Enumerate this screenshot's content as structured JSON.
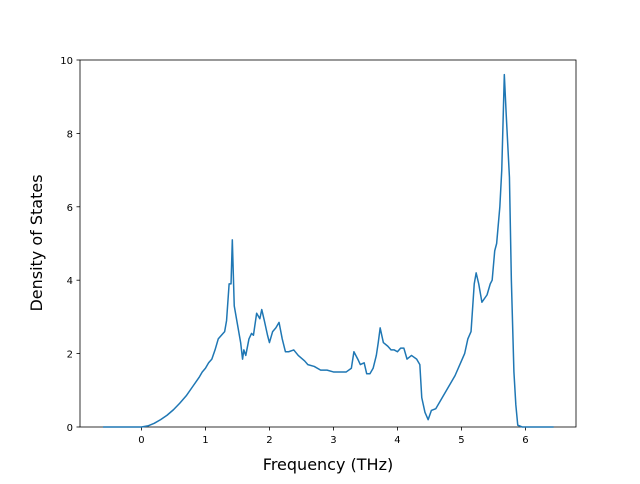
{
  "chart_data": {
    "type": "line",
    "xlabel": "Frequency (THz)",
    "ylabel": "Density of States",
    "color": "#1f77b4",
    "x": [
      -0.6,
      0,
      0.1,
      0.2,
      0.3,
      0.4,
      0.5,
      0.6,
      0.7,
      0.8,
      0.9,
      0.95,
      1.0,
      1.05,
      1.1,
      1.15,
      1.2,
      1.25,
      1.3,
      1.33,
      1.37,
      1.4,
      1.42,
      1.45,
      1.5,
      1.55,
      1.58,
      1.6,
      1.63,
      1.68,
      1.72,
      1.75,
      1.8,
      1.85,
      1.88,
      1.92,
      1.97,
      2.0,
      2.05,
      2.1,
      2.15,
      2.2,
      2.25,
      2.3,
      2.38,
      2.45,
      2.55,
      2.6,
      2.7,
      2.8,
      2.9,
      3.0,
      3.1,
      3.2,
      3.28,
      3.32,
      3.38,
      3.42,
      3.48,
      3.52,
      3.57,
      3.62,
      3.67,
      3.7,
      3.73,
      3.78,
      3.85,
      3.9,
      3.95,
      4.0,
      4.05,
      4.1,
      4.15,
      4.22,
      4.3,
      4.35,
      4.38,
      4.43,
      4.48,
      4.53,
      4.6,
      4.7,
      4.8,
      4.9,
      5.0,
      5.05,
      5.1,
      5.15,
      5.2,
      5.23,
      5.27,
      5.32,
      5.4,
      5.45,
      5.48,
      5.52,
      5.55,
      5.6,
      5.63,
      5.67,
      5.7,
      5.75,
      5.78,
      5.82,
      5.85,
      5.88,
      5.95,
      6.44
    ],
    "values": [
      0,
      0,
      0.03,
      0.1,
      0.2,
      0.32,
      0.47,
      0.65,
      0.85,
      1.1,
      1.35,
      1.5,
      1.6,
      1.75,
      1.85,
      2.1,
      2.4,
      2.5,
      2.6,
      2.9,
      3.9,
      3.9,
      5.1,
      3.3,
      2.8,
      2.3,
      1.85,
      2.1,
      1.95,
      2.4,
      2.55,
      2.5,
      3.1,
      2.95,
      3.2,
      2.9,
      2.5,
      2.3,
      2.6,
      2.7,
      2.85,
      2.4,
      2.05,
      2.05,
      2.1,
      1.95,
      1.8,
      1.7,
      1.65,
      1.55,
      1.55,
      1.5,
      1.5,
      1.5,
      1.6,
      2.05,
      1.85,
      1.7,
      1.75,
      1.45,
      1.45,
      1.6,
      1.95,
      2.3,
      2.7,
      2.3,
      2.2,
      2.1,
      2.1,
      2.05,
      2.15,
      2.15,
      1.85,
      1.95,
      1.85,
      1.7,
      0.8,
      0.4,
      0.2,
      0.45,
      0.5,
      0.8,
      1.1,
      1.4,
      1.8,
      2.0,
      2.4,
      2.6,
      3.9,
      4.2,
      3.9,
      3.4,
      3.6,
      3.9,
      4.0,
      4.8,
      5.0,
      6.0,
      7.0,
      9.6,
      8.5,
      6.8,
      4.0,
      1.5,
      0.6,
      0.05,
      0,
      0
    ],
    "xlim": [
      -0.96,
      6.79
    ],
    "xticks": [
      0,
      1,
      2,
      3,
      4,
      5,
      6
    ],
    "ylim": [
      0,
      10
    ],
    "yticks": [
      0,
      2,
      4,
      6,
      8,
      10
    ]
  }
}
